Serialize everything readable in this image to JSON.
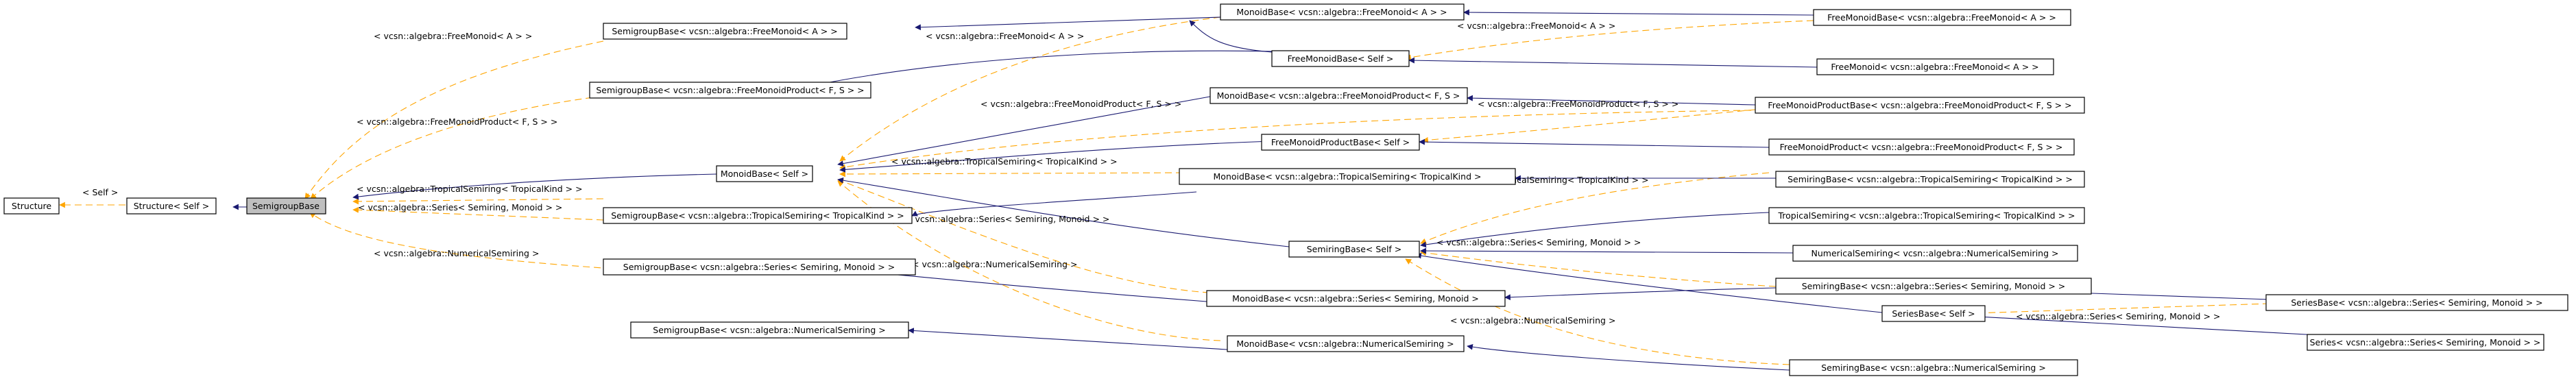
{
  "nodes": {
    "structure": "Structure",
    "structure_self": "Structure< Self >",
    "semigroupbase": "SemigroupBase",
    "sgb_freemonoid": "SemigroupBase< vcsn::algebra::FreeMonoid< A > >",
    "sgb_freemonoidproduct": "SemigroupBase< vcsn::algebra::FreeMonoidProduct< F, S > >",
    "sgb_tropical": "SemigroupBase< vcsn::algebra::TropicalSemiring< TropicalKind > >",
    "sgb_series": "SemigroupBase< vcsn::algebra::Series< Semiring, Monoid > >",
    "sgb_numerical": "SemigroupBase< vcsn::algebra::NumericalSemiring >",
    "monoidbase_self": "MonoidBase< Self >",
    "mb_freemonoid": "MonoidBase< vcsn::algebra::FreeMonoid< A > >",
    "freemonoidbase_self": "FreeMonoidBase< Self >",
    "mb_freemonoidproduct": "MonoidBase< vcsn::algebra::FreeMonoidProduct< F, S >",
    "freemonoidproductbase_self": "FreeMonoidProductBase< Self >",
    "mb_tropical": "MonoidBase< vcsn::algebra::TropicalSemiring< TropicalKind >",
    "semiringbase_self": "SemiringBase< Self >",
    "mb_series": "MonoidBase< vcsn::algebra::Series< Semiring, Monoid >",
    "mb_numerical": "MonoidBase< vcsn::algebra::NumericalSemiring >",
    "freemonoidbase_freemonoid": "FreeMonoidBase< vcsn::algebra::FreeMonoid< A > >",
    "freemonoid": "FreeMonoid< vcsn::algebra::FreeMonoid< A > >",
    "fmpb_freemonoidproduct": "FreeMonoidProductBase< vcsn::algebra::FreeMonoidProduct< F, S > >",
    "freemonoidproduct": "FreeMonoidProduct< vcsn::algebra::FreeMonoidProduct< F, S > >",
    "srb_tropical": "SemiringBase< vcsn::algebra::TropicalSemiring< TropicalKind > >",
    "tropicalsemiring": "TropicalSemiring< vcsn::algebra::TropicalSemiring< TropicalKind > >",
    "numericalsemiring": "NumericalSemiring< vcsn::algebra::NumericalSemiring >",
    "srb_series": "SemiringBase< vcsn::algebra::Series< Semiring, Monoid > >",
    "seriesbase_self": "SeriesBase< Self >",
    "srb_numerical": "SemiringBase< vcsn::algebra::NumericalSemiring >",
    "seriesbase_series": "SeriesBase< vcsn::algebra::Series< Semiring, Monoid > >",
    "series": "Series< vcsn::algebra::Series< Semiring, Monoid > >"
  },
  "labels": {
    "self": "< Self >",
    "freemonoid": "< vcsn::algebra::FreeMonoid< A > >",
    "freemonoidproduct": "< vcsn::algebra::FreeMonoidProduct< F, S > >",
    "tropical": "< vcsn::algebra::TropicalSemiring< TropicalKind > >",
    "series": "< vcsn::algebra::Series< Semiring, Monoid > >",
    "numerical": "< vcsn::algebra::NumericalSemiring >"
  },
  "colors": {
    "inheritance_edge": "#191970",
    "template_edge": "#ffa500",
    "focus_node_fill": "#bfbfbf"
  }
}
